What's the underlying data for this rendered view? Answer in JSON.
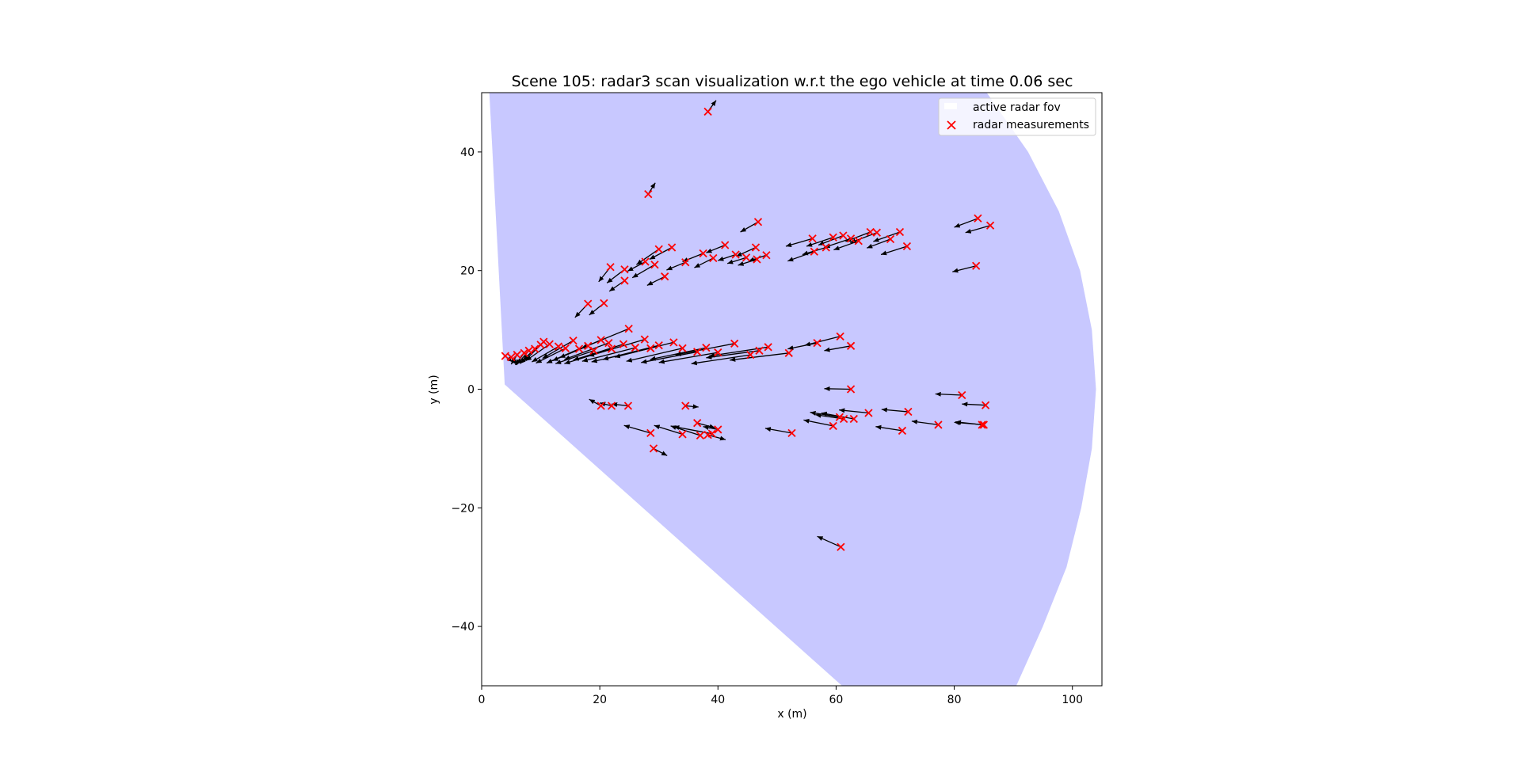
{
  "chart_data": {
    "type": "scatter",
    "title": "Scene 105: radar3 scan visualization w.r.t the ego vehicle at time 0.06 sec",
    "xlabel": "x (m)",
    "ylabel": "y (m)",
    "xlim": [
      0,
      105
    ],
    "ylim": [
      -50,
      50
    ],
    "xticks": [
      0,
      20,
      40,
      60,
      80,
      100
    ],
    "yticks": [
      -40,
      -20,
      0,
      20,
      40
    ],
    "grid": false,
    "legend_position": "top-right",
    "fov": {
      "name": "active radar fov",
      "color": "#c8c8ff",
      "polygon": [
        [
          1.3,
          50
        ],
        [
          3.9,
          0.8
        ],
        [
          61,
          -50
        ],
        [
          90.5,
          -50
        ],
        [
          95,
          -40
        ],
        [
          99,
          -30
        ],
        [
          101.5,
          -20
        ],
        [
          103.3,
          -10
        ],
        [
          104,
          0
        ],
        [
          103.3,
          10
        ],
        [
          101.3,
          20
        ],
        [
          97.7,
          30
        ],
        [
          92.5,
          40
        ],
        [
          85.5,
          50
        ]
      ]
    },
    "measurements": {
      "name": "radar measurements",
      "color": "#ff0000",
      "arrow_color": "#000000",
      "points": [
        [
          38.3,
          46.8,
          1.4,
          1.9
        ],
        [
          28.2,
          32.9,
          1.2,
          1.9
        ],
        [
          46.8,
          28.2,
          -3.0,
          -1.7
        ],
        [
          21.8,
          20.6,
          -2.0,
          -2.5
        ],
        [
          24.2,
          18.3,
          -2.6,
          -1.8
        ],
        [
          18.0,
          14.4,
          -2.2,
          -2.3
        ],
        [
          20.7,
          14.5,
          -2.5,
          -2.0
        ],
        [
          24.2,
          20.2,
          -3.0,
          -2.3
        ],
        [
          27.7,
          21.5,
          -3.0,
          -1.6
        ],
        [
          29.3,
          21.0,
          -3.8,
          -2.2
        ],
        [
          30.0,
          23.6,
          -3.8,
          -2.6
        ],
        [
          32.2,
          23.9,
          -3.8,
          -2.0
        ],
        [
          31.0,
          19.0,
          -3.0,
          -1.5
        ],
        [
          34.5,
          21.4,
          -3.2,
          -1.3
        ],
        [
          37.5,
          22.9,
          -3.5,
          -1.4
        ],
        [
          39.2,
          22.1,
          -3.2,
          -1.6
        ],
        [
          41.2,
          24.3,
          -3.2,
          -1.3
        ],
        [
          43.0,
          22.7,
          -3.0,
          -1.0
        ],
        [
          44.8,
          22.2,
          -3.2,
          -1.0
        ],
        [
          46.4,
          23.9,
          -3.3,
          -1.5
        ],
        [
          46.6,
          21.9,
          -3.2,
          -1.0
        ],
        [
          48.2,
          22.6,
          -3.0,
          -1.0
        ],
        [
          56.0,
          25.4,
          -4.5,
          -1.3
        ],
        [
          58.3,
          23.9,
          -4.0,
          -1.2
        ],
        [
          59.5,
          25.6,
          -4.5,
          -1.5
        ],
        [
          61.2,
          25.9,
          -4.2,
          -1.6
        ],
        [
          62.5,
          25.4,
          -4.5,
          -1.5
        ],
        [
          63.8,
          25.0,
          -4.2,
          -1.5
        ],
        [
          65.8,
          26.5,
          -4.2,
          -1.6
        ],
        [
          66.9,
          26.4,
          -4.5,
          -1.7
        ],
        [
          69.2,
          25.3,
          -4.0,
          -1.5
        ],
        [
          70.8,
          26.5,
          -4.5,
          -1.6
        ],
        [
          72.0,
          24.1,
          -4.4,
          -1.4
        ],
        [
          56.3,
          23.2,
          -4.5,
          -1.6
        ],
        [
          84.0,
          28.8,
          -4.0,
          -1.5
        ],
        [
          86.1,
          27.6,
          -4.2,
          -1.2
        ],
        [
          83.7,
          20.8,
          -4.0,
          -1.0
        ],
        [
          4.0,
          5.6,
          1.2,
          -1.0
        ],
        [
          5.0,
          5.4,
          1.0,
          -1.3
        ],
        [
          6.0,
          5.8,
          -1.0,
          -1.6
        ],
        [
          7.2,
          6.1,
          -1.5,
          -2.0
        ],
        [
          8.0,
          6.5,
          -2.0,
          -2.3
        ],
        [
          9.0,
          6.8,
          -2.5,
          -2.5
        ],
        [
          10.0,
          7.5,
          -2.8,
          -2.8
        ],
        [
          10.5,
          8.0,
          -3.5,
          -3.0
        ],
        [
          11.5,
          7.6,
          -4.0,
          -2.8
        ],
        [
          13.0,
          7.2,
          -4.5,
          -2.6
        ],
        [
          14.2,
          6.9,
          -5.0,
          -2.5
        ],
        [
          15.5,
          8.2,
          -5.2,
          -3.0
        ],
        [
          16.5,
          6.8,
          -5.5,
          -2.4
        ],
        [
          18.0,
          7.3,
          -6.0,
          -2.5
        ],
        [
          19.0,
          6.5,
          -6.5,
          -2.2
        ],
        [
          20.2,
          8.3,
          -7.0,
          -3.0
        ],
        [
          21.5,
          7.8,
          -7.5,
          -2.8
        ],
        [
          22.0,
          6.8,
          -8.0,
          -2.5
        ],
        [
          24.0,
          7.6,
          -8.5,
          -2.7
        ],
        [
          24.9,
          10.2,
          -8.0,
          -3.3
        ],
        [
          26.0,
          7.0,
          -9.0,
          -2.3
        ],
        [
          27.6,
          8.4,
          -9.5,
          -2.8
        ],
        [
          28.6,
          6.9,
          -10.0,
          -2.3
        ],
        [
          30.0,
          7.4,
          -9.5,
          -2.4
        ],
        [
          32.5,
          7.9,
          -10.0,
          -2.5
        ],
        [
          34.0,
          6.9,
          -9.5,
          -2.2
        ],
        [
          36.5,
          6.3,
          -9.5,
          -1.8
        ],
        [
          38.0,
          7.0,
          -9.5,
          -2.0
        ],
        [
          40.0,
          6.2,
          -10.0,
          -1.7
        ],
        [
          42.8,
          7.7,
          -10.0,
          -1.9
        ],
        [
          45.5,
          5.8,
          -10.0,
          -1.5
        ],
        [
          47.0,
          6.5,
          -9.0,
          -1.2
        ],
        [
          48.5,
          7.1,
          -10.0,
          -1.5
        ],
        [
          52.0,
          6.1,
          -10.0,
          -1.2
        ],
        [
          56.8,
          7.8,
          -5.0,
          -1.0
        ],
        [
          60.7,
          8.9,
          -6.0,
          -1.5
        ],
        [
          62.5,
          7.3,
          -4.5,
          -0.8
        ],
        [
          62.5,
          0.0,
          -4.5,
          0.1
        ],
        [
          81.3,
          -1.0,
          -4.5,
          0.2
        ],
        [
          85.3,
          -2.7,
          -4.0,
          0.2
        ],
        [
          20.2,
          -2.8,
          -2.0,
          1.1
        ],
        [
          22.0,
          -2.8,
          -2.0,
          0.5
        ],
        [
          24.8,
          -2.8,
          -2.8,
          0.3
        ],
        [
          34.5,
          -2.8,
          2.2,
          -0.2
        ],
        [
          28.6,
          -7.4,
          -4.5,
          1.3
        ],
        [
          29.1,
          -10.0,
          2.3,
          -1.2
        ],
        [
          34.0,
          -7.6,
          -4.8,
          1.5
        ],
        [
          36.5,
          -5.7,
          3.0,
          -0.8
        ],
        [
          37.0,
          -7.8,
          -5.0,
          1.6
        ],
        [
          38.3,
          -7.7,
          3.0,
          -0.8
        ],
        [
          39.0,
          -7.5,
          -6.5,
          1.2
        ],
        [
          40.0,
          -6.8,
          -2.5,
          0.5
        ],
        [
          52.5,
          -7.4,
          -4.5,
          0.8
        ],
        [
          59.5,
          -6.2,
          -5.0,
          1.0
        ],
        [
          60.6,
          -4.7,
          -5.0,
          0.8
        ],
        [
          61.3,
          -5.0,
          -4.8,
          0.7
        ],
        [
          63.0,
          -5.0,
          -5.5,
          1.0
        ],
        [
          65.5,
          -4.0,
          -5.0,
          0.5
        ],
        [
          72.2,
          -3.8,
          -4.5,
          0.4
        ],
        [
          71.2,
          -7.0,
          -4.5,
          0.7
        ],
        [
          77.3,
          -6.0,
          -4.5,
          0.6
        ],
        [
          84.7,
          -6.0,
          -4.5,
          0.5
        ],
        [
          85.0,
          -6.0,
          -5.0,
          0.4
        ],
        [
          60.8,
          -26.6,
          -4.0,
          1.8
        ]
      ]
    }
  }
}
